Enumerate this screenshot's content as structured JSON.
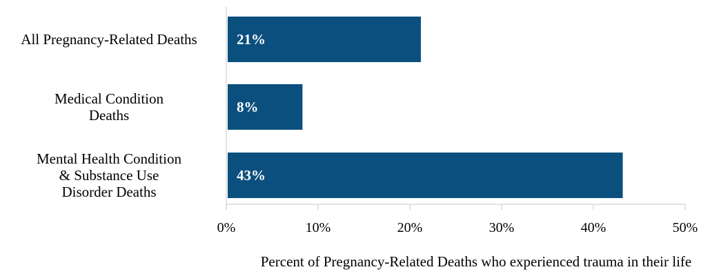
{
  "chart_data": {
    "type": "bar",
    "orientation": "horizontal",
    "categories": [
      [
        "All Pregnancy-Related Deaths"
      ],
      [
        "Medical Condition",
        "Deaths"
      ],
      [
        "Mental Health Condition",
        "& Substance Use",
        "Disorder Deaths"
      ]
    ],
    "values": [
      21.2,
      8.3,
      43.2
    ],
    "data_labels": [
      "21%",
      "8%",
      "43%"
    ],
    "xlabel": "Percent of Pregnancy-Related Deaths who experienced trauma in their life",
    "xlim": [
      0,
      50
    ],
    "xticks": [
      0,
      10,
      20,
      30,
      40,
      50
    ],
    "xtick_labels": [
      "0%",
      "10%",
      "20%",
      "30%",
      "40%",
      "50%"
    ],
    "grid": false,
    "colors": {
      "bar": "#0b4f7e",
      "axis": "#d9d9d9"
    }
  }
}
